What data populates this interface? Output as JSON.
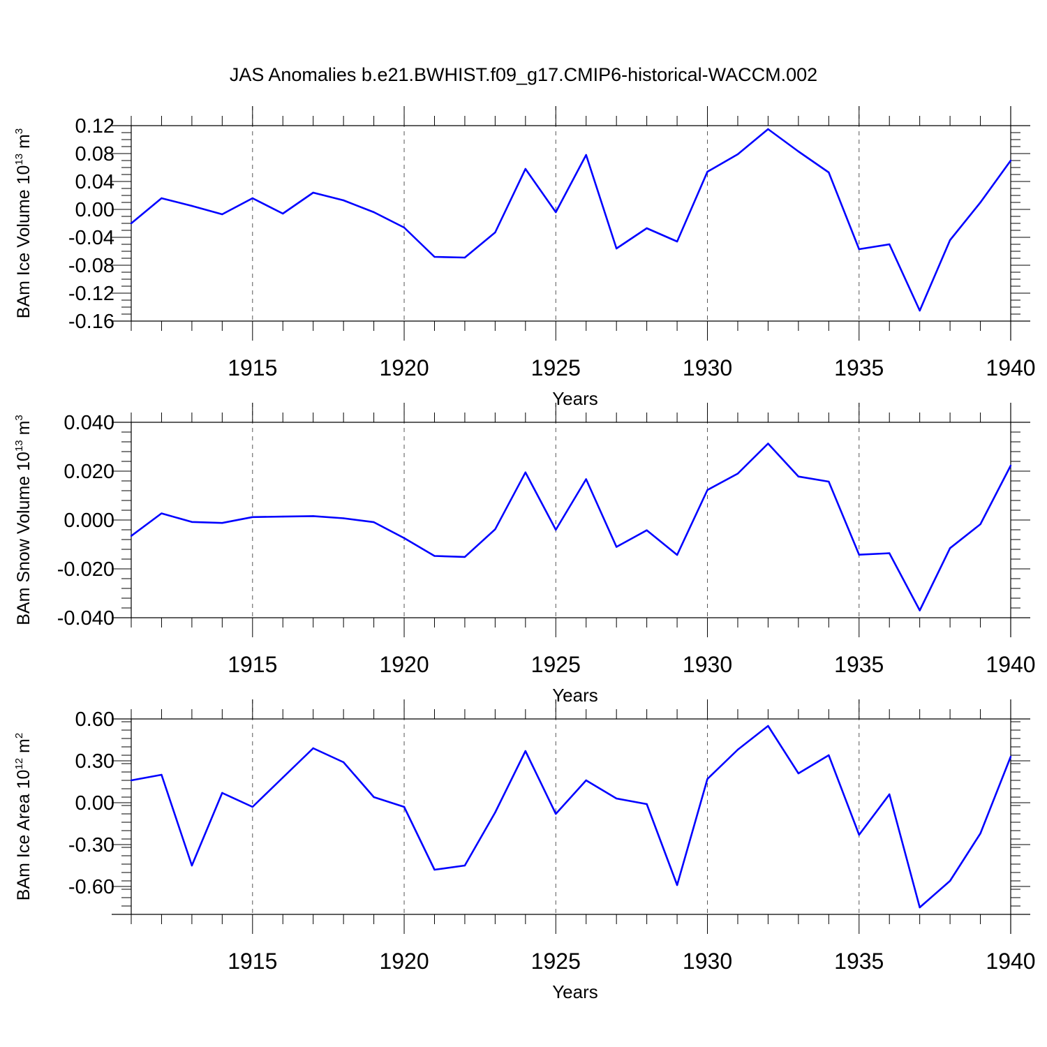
{
  "title": "JAS Anomalies b.e21.BWHIST.f09_g17.CMIP6-historical-WACCM.002",
  "colors": {
    "line": "#0000ff",
    "axes": "#000000",
    "grid": "#555555"
  },
  "chart_data": [
    {
      "type": "line",
      "ylabel": {
        "main": "BAm Ice Volume 10",
        "exp": "13",
        "unit": " m",
        "unit_exp": "3"
      },
      "xlabel": "Years",
      "xlim": [
        1911,
        1940
      ],
      "ylim": [
        -0.16,
        0.12
      ],
      "xticks": [
        "1915",
        "1920",
        "1925",
        "1930",
        "1935",
        "1940"
      ],
      "yticks": [
        "0.12",
        "0.08",
        "0.04",
        "0.00",
        "-0.04",
        "-0.08",
        "-0.12",
        "-0.16"
      ],
      "ytick_values": [
        0.12,
        0.08,
        0.04,
        0.0,
        -0.04,
        -0.08,
        -0.12,
        -0.16
      ],
      "minor_ystep": 0.01,
      "grid": "dashed vertical lines at labeled years",
      "x": [
        1911,
        1912,
        1913,
        1914,
        1915,
        1916,
        1917,
        1918,
        1919,
        1920,
        1921,
        1922,
        1923,
        1924,
        1925,
        1926,
        1927,
        1928,
        1929,
        1930,
        1931,
        1932,
        1933,
        1934,
        1935,
        1936,
        1937,
        1938,
        1939,
        1940
      ],
      "values": [
        -0.02,
        0.016,
        0.005,
        -0.007,
        0.016,
        -0.006,
        0.024,
        0.013,
        -0.004,
        -0.026,
        -0.068,
        -0.069,
        -0.033,
        0.058,
        -0.004,
        0.078,
        -0.056,
        -0.027,
        -0.046,
        0.054,
        0.079,
        0.115,
        0.083,
        0.053,
        -0.057,
        -0.05,
        -0.145,
        -0.044,
        0.01,
        0.07
      ]
    },
    {
      "type": "line",
      "ylabel": {
        "main": "BAm Snow Volume 10",
        "exp": "13",
        "unit": " m",
        "unit_exp": "3"
      },
      "xlabel": "Years",
      "xlim": [
        1911,
        1940
      ],
      "ylim": [
        -0.04,
        0.04
      ],
      "xticks": [
        "1915",
        "1920",
        "1925",
        "1930",
        "1935",
        "1940"
      ],
      "yticks": [
        "0.040",
        "0.020",
        "0.000",
        "-0.020",
        "-0.040"
      ],
      "ytick_values": [
        0.04,
        0.02,
        0.0,
        -0.02,
        -0.04
      ],
      "minor_ystep": 0.004,
      "grid": "dashed vertical lines at labeled years",
      "x": [
        1911,
        1912,
        1913,
        1914,
        1915,
        1916,
        1917,
        1918,
        1919,
        1920,
        1921,
        1922,
        1923,
        1924,
        1925,
        1926,
        1927,
        1928,
        1929,
        1930,
        1931,
        1932,
        1933,
        1934,
        1935,
        1936,
        1937,
        1938,
        1939,
        1940
      ],
      "values": [
        -0.0065,
        0.0027,
        -0.0008,
        -0.0012,
        0.0012,
        0.0014,
        0.0016,
        0.0007,
        -0.0009,
        -0.0074,
        -0.0147,
        -0.0151,
        -0.0038,
        0.0195,
        -0.004,
        0.0167,
        -0.011,
        -0.0042,
        -0.0143,
        0.0123,
        0.019,
        0.0313,
        0.0178,
        0.0157,
        -0.0142,
        -0.0136,
        -0.037,
        -0.0115,
        -0.0017,
        0.0223
      ]
    },
    {
      "type": "line",
      "ylabel": {
        "main": "BAm Ice Area 10",
        "exp": "12",
        "unit": " m",
        "unit_exp": "2"
      },
      "xlabel": "Years",
      "xlim": [
        1911,
        1940
      ],
      "ylim": [
        -0.8,
        0.6
      ],
      "xticks": [
        "1915",
        "1920",
        "1925",
        "1930",
        "1935",
        "1940"
      ],
      "yticks": [
        "0.60",
        "0.30",
        "0.00",
        "-0.30",
        "-0.60"
      ],
      "ytick_values": [
        0.6,
        0.3,
        0.0,
        -0.3,
        -0.6
      ],
      "minor_ystep": 0.06,
      "grid": "dashed vertical lines at labeled years",
      "x": [
        1911,
        1912,
        1913,
        1914,
        1915,
        1916,
        1917,
        1918,
        1919,
        1920,
        1921,
        1922,
        1923,
        1924,
        1925,
        1926,
        1927,
        1928,
        1929,
        1930,
        1931,
        1932,
        1933,
        1934,
        1935,
        1936,
        1937,
        1938,
        1939,
        1940
      ],
      "values": [
        0.16,
        0.2,
        -0.45,
        0.07,
        -0.03,
        0.18,
        0.39,
        0.29,
        0.04,
        -0.03,
        -0.48,
        -0.45,
        -0.07,
        0.37,
        -0.08,
        0.16,
        0.03,
        -0.01,
        -0.59,
        0.17,
        0.38,
        0.55,
        0.21,
        0.34,
        -0.23,
        0.06,
        -0.75,
        -0.56,
        -0.22,
        0.33
      ]
    }
  ]
}
